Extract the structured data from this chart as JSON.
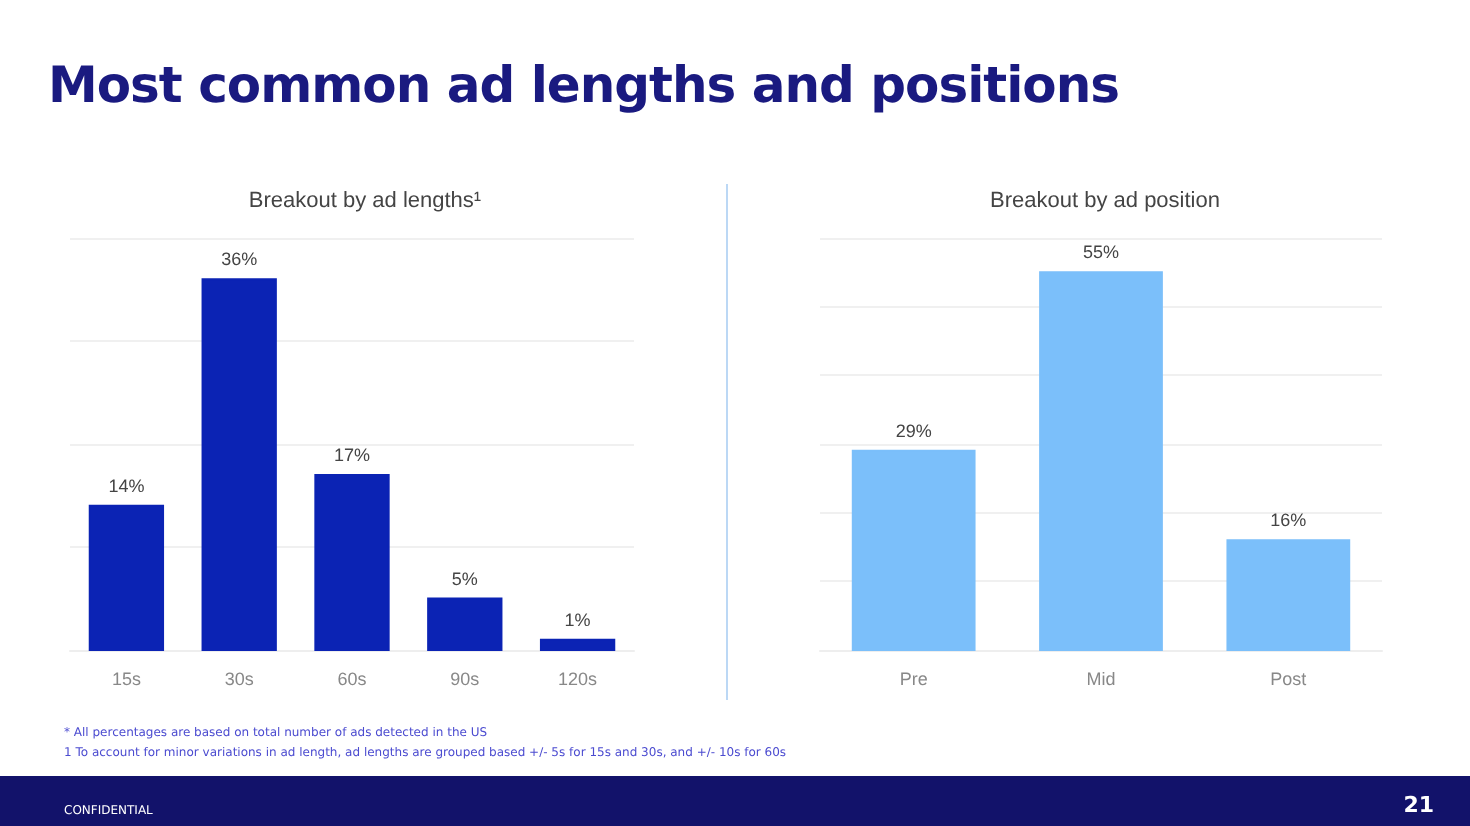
{
  "chart_data": [
    {
      "type": "bar",
      "title": "Most common ad lengths and positions",
      "subtitle": "Breakout by ad lengths¹",
      "categories": [
        "15s",
        "30s",
        "60s",
        "90s",
        "120s"
      ],
      "values": [
        14,
        36,
        17,
        5,
        1
      ],
      "color": "#0b23b4",
      "value_labels": [
        "14%",
        "36%",
        "17%",
        "5%",
        "1%"
      ],
      "tick_labels": "x",
      "grid": "y",
      "annotations": [
        "* All percentages are based on total number of ads detected in the US",
        "1 To account for minor variations in ad length, ad lengths are grouped based +/- 5s for 15s and 30s, and +/- 10s for 60s",
        "CONFIDENTIAL"
      ]
    },
    {
      "type": "bar",
      "subtitle": "Breakout by ad position",
      "categories": [
        "Pre",
        "Mid",
        "Post"
      ],
      "values": [
        29,
        55,
        16
      ],
      "color": "#7bbffa",
      "value_labels": [
        "29%",
        "55%",
        "16%"
      ],
      "tick_labels": "x",
      "grid": "y",
      "annotations": [
        "21"
      ]
    }
  ]
}
